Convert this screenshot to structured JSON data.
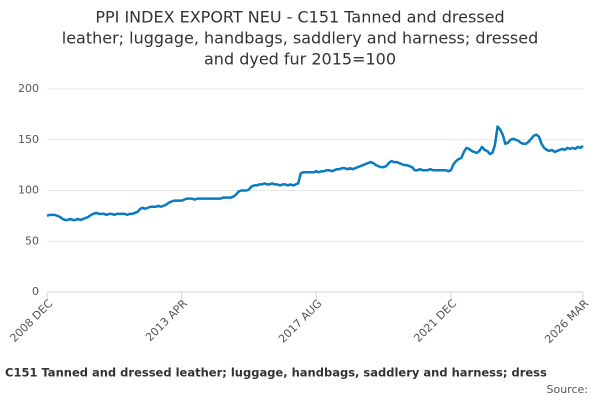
{
  "chart_data": {
    "type": "line",
    "title": [
      "PPI INDEX EXPORT NEU - C151 Tanned and dressed",
      "leather; luggage, handbags, saddlery and harness; dressed",
      "and dyed fur 2015=100"
    ],
    "categories": [
      "2008 DEC",
      null,
      null,
      null,
      null,
      null,
      null,
      null,
      null,
      null,
      null,
      null,
      null,
      null,
      null,
      null,
      null,
      null,
      null,
      null,
      null,
      null,
      null,
      null,
      null,
      null,
      null,
      null,
      null,
      null,
      null,
      null,
      null,
      null,
      null,
      null,
      null,
      null,
      null,
      null,
      null,
      null,
      null,
      null,
      null,
      null,
      null,
      null,
      null,
      null,
      null,
      null,
      "2013 APR",
      null,
      null,
      null,
      null,
      null,
      null,
      null,
      null,
      null,
      null,
      null,
      null,
      null,
      null,
      null,
      null,
      null,
      null,
      null,
      null,
      null,
      null,
      null,
      null,
      null,
      null,
      null,
      null,
      null,
      null,
      null,
      null,
      null,
      null,
      null,
      null,
      null,
      null,
      null,
      null,
      null,
      null,
      null,
      null,
      null,
      null,
      null,
      null,
      null,
      null,
      null,
      "2017 AUG",
      null,
      null,
      null,
      null,
      null,
      null,
      null,
      null,
      null,
      null,
      null,
      null,
      null,
      null,
      null,
      null,
      null,
      null,
      null,
      null,
      null,
      null,
      null,
      null,
      null,
      null,
      null,
      null,
      null,
      null,
      null,
      null,
      null,
      null,
      null,
      null,
      null,
      null,
      null,
      null,
      null,
      null,
      null,
      null,
      null,
      null,
      null,
      null,
      null,
      null,
      null,
      "2021 DEC",
      null,
      null,
      null,
      null,
      null,
      null,
      null,
      null,
      null,
      null,
      null,
      null,
      null,
      null,
      null,
      null,
      null,
      null,
      null,
      null,
      null,
      null,
      null,
      null,
      null,
      null,
      null,
      null,
      null,
      null,
      null,
      null,
      null,
      null,
      null,
      null,
      null,
      null,
      null,
      null,
      null,
      null,
      null,
      null,
      null,
      null,
      null,
      null,
      null,
      null,
      "2026 MAR"
    ],
    "series": [
      {
        "name": "C151 Tanned and dressed leather; luggage, handbags, saddlery and harness; dress",
        "color": "#0b7bbf",
        "values": [
          75,
          76,
          76,
          76,
          75,
          74,
          72,
          71,
          71,
          72,
          71,
          71,
          72,
          71,
          72,
          73,
          74,
          76,
          77,
          78,
          77,
          77,
          77,
          76,
          77,
          77,
          76,
          77,
          77,
          77,
          77,
          76,
          77,
          77,
          78,
          79,
          82,
          83,
          82,
          83,
          84,
          84,
          84,
          85,
          84,
          85,
          86,
          88,
          89,
          90,
          90,
          90,
          90,
          91,
          92,
          92,
          92,
          91,
          92,
          92,
          92,
          92,
          92,
          92,
          92,
          92,
          92,
          92,
          93,
          93,
          93,
          93,
          94,
          96,
          99,
          100,
          100,
          100,
          101,
          104,
          105,
          105,
          106,
          106,
          107,
          106,
          106,
          107,
          106,
          106,
          105,
          106,
          106,
          105,
          106,
          105,
          106,
          107,
          117,
          118,
          118,
          118,
          118,
          118,
          119,
          118,
          119,
          119,
          120,
          120,
          119,
          120,
          121,
          121,
          122,
          122,
          121,
          122,
          121,
          122,
          123,
          124,
          125,
          126,
          127,
          128,
          127,
          125,
          124,
          123,
          123,
          124,
          127,
          129,
          128,
          128,
          127,
          126,
          125,
          125,
          124,
          123,
          120,
          120,
          121,
          120,
          120,
          120,
          121,
          120,
          120,
          120,
          120,
          120,
          120,
          119,
          120,
          126,
          129,
          131,
          132,
          138,
          142,
          141,
          139,
          138,
          137,
          139,
          143,
          140,
          139,
          136,
          137,
          145,
          163,
          160,
          155,
          146,
          147,
          150,
          151,
          150,
          149,
          147,
          146,
          146,
          148,
          151,
          154,
          155,
          153,
          146,
          142,
          140,
          139,
          140,
          138,
          139,
          140,
          141,
          140,
          142,
          141,
          142,
          141,
          143,
          142,
          144
        ]
      }
    ],
    "ylim": [
      0,
      200
    ],
    "yticks": [
      0,
      50,
      100,
      150,
      200
    ],
    "grid": true,
    "source": "Source:"
  }
}
